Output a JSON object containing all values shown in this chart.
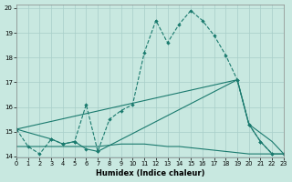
{
  "xlabel": "Humidex (Indice chaleur)",
  "background_color": "#c8e8e0",
  "grid_color": "#a8cec8",
  "line_color": "#1a7a6e",
  "xlim": [
    0,
    23
  ],
  "ylim": [
    13.95,
    20.15
  ],
  "yticks": [
    14,
    15,
    16,
    17,
    18,
    19,
    20
  ],
  "xticks": [
    0,
    1,
    2,
    3,
    4,
    5,
    6,
    7,
    8,
    9,
    10,
    11,
    12,
    13,
    14,
    15,
    16,
    17,
    18,
    19,
    20,
    21,
    22,
    23
  ],
  "line1_x": [
    0,
    1,
    2,
    3,
    4,
    5,
    6,
    7,
    8,
    9,
    10,
    11,
    12,
    13,
    14,
    15,
    16,
    17,
    18,
    19,
    20,
    21,
    22
  ],
  "line1_y": [
    15.1,
    14.4,
    14.1,
    14.7,
    14.5,
    14.6,
    16.1,
    14.2,
    15.5,
    15.85,
    16.1,
    18.2,
    19.5,
    18.6,
    19.35,
    19.9,
    19.5,
    18.9,
    18.1,
    17.1,
    15.3,
    14.6,
    14.1
  ],
  "line2_x": [
    0,
    3,
    4,
    5,
    6,
    7,
    19,
    20,
    21,
    22,
    23
  ],
  "line2_y": [
    15.1,
    14.7,
    14.5,
    14.6,
    14.3,
    14.2,
    17.1,
    15.3,
    14.6,
    14.1,
    14.1
  ],
  "line3_x": [
    0,
    19,
    20,
    22,
    23
  ],
  "line3_y": [
    15.1,
    17.1,
    15.3,
    14.6,
    14.1
  ],
  "line4_x": [
    0,
    7,
    8,
    9,
    10,
    11,
    12,
    13,
    14,
    15,
    16,
    17,
    18,
    19,
    20,
    21,
    22,
    23
  ],
  "line4_y": [
    14.4,
    14.4,
    14.45,
    14.5,
    14.5,
    14.5,
    14.45,
    14.4,
    14.4,
    14.35,
    14.3,
    14.25,
    14.2,
    14.15,
    14.1,
    14.1,
    14.1,
    14.1
  ]
}
